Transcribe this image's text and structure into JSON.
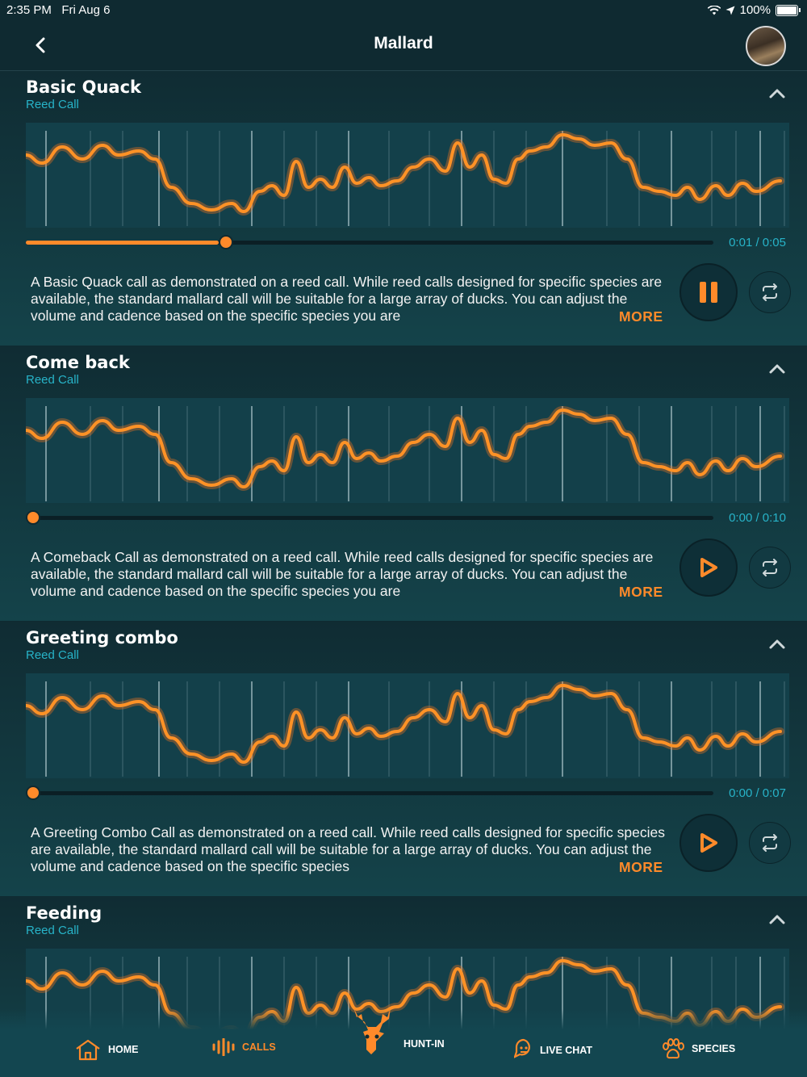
{
  "status_bar": {
    "time": "2:35 PM",
    "date": "Fri Aug 6",
    "battery": "100%"
  },
  "header": {
    "title": "Mallard"
  },
  "calls": [
    {
      "title": "Basic Quack",
      "subtitle": "Reed Call",
      "time": "0:01 / 0:05",
      "progress": 0.28,
      "state": "playing",
      "description": "A Basic Quack call as demonstrated on a reed call. While reed calls designed for specific species are available, the standard mallard call will be suitable for a large array of ducks. You can adjust the volume and cadence based on the specific species you are",
      "more_label": "MORE"
    },
    {
      "title": "Come back",
      "subtitle": "Reed Call",
      "time": "0:00 / 0:10",
      "progress": 0.0,
      "state": "paused",
      "description": "A Comeback Call as demonstrated on a reed call. While reed calls designed for specific species are available, the standard mallard call will be suitable for a large array of ducks. You can adjust the volume and cadence based on the specific species you are",
      "more_label": "MORE"
    },
    {
      "title": "Greeting combo",
      "subtitle": "Reed Call",
      "time": "0:00 / 0:07",
      "progress": 0.0,
      "state": "paused",
      "description": "A Greeting Combo Call as demonstrated on a reed call. While reed calls designed for specific species are available, the standard mallard call will be suitable for a large array of ducks. You can adjust the volume and cadence based on the specific species",
      "more_label": "MORE"
    },
    {
      "title": "Feeding",
      "subtitle": "Reed Call"
    }
  ],
  "tabbar": {
    "items": [
      {
        "label": "HOME",
        "icon": "home-icon"
      },
      {
        "label": "CALLS",
        "icon": "waveform-icon",
        "active": true
      },
      {
        "label": "HUNT-IN",
        "icon": "deer-icon"
      },
      {
        "label": "LIVE CHAT",
        "icon": "chat-icon"
      },
      {
        "label": "SPECIES",
        "icon": "paw-icon"
      }
    ]
  },
  "colors": {
    "accent": "#ff8a2a",
    "teal": "#27b3c8",
    "background": "#0f2a31"
  }
}
